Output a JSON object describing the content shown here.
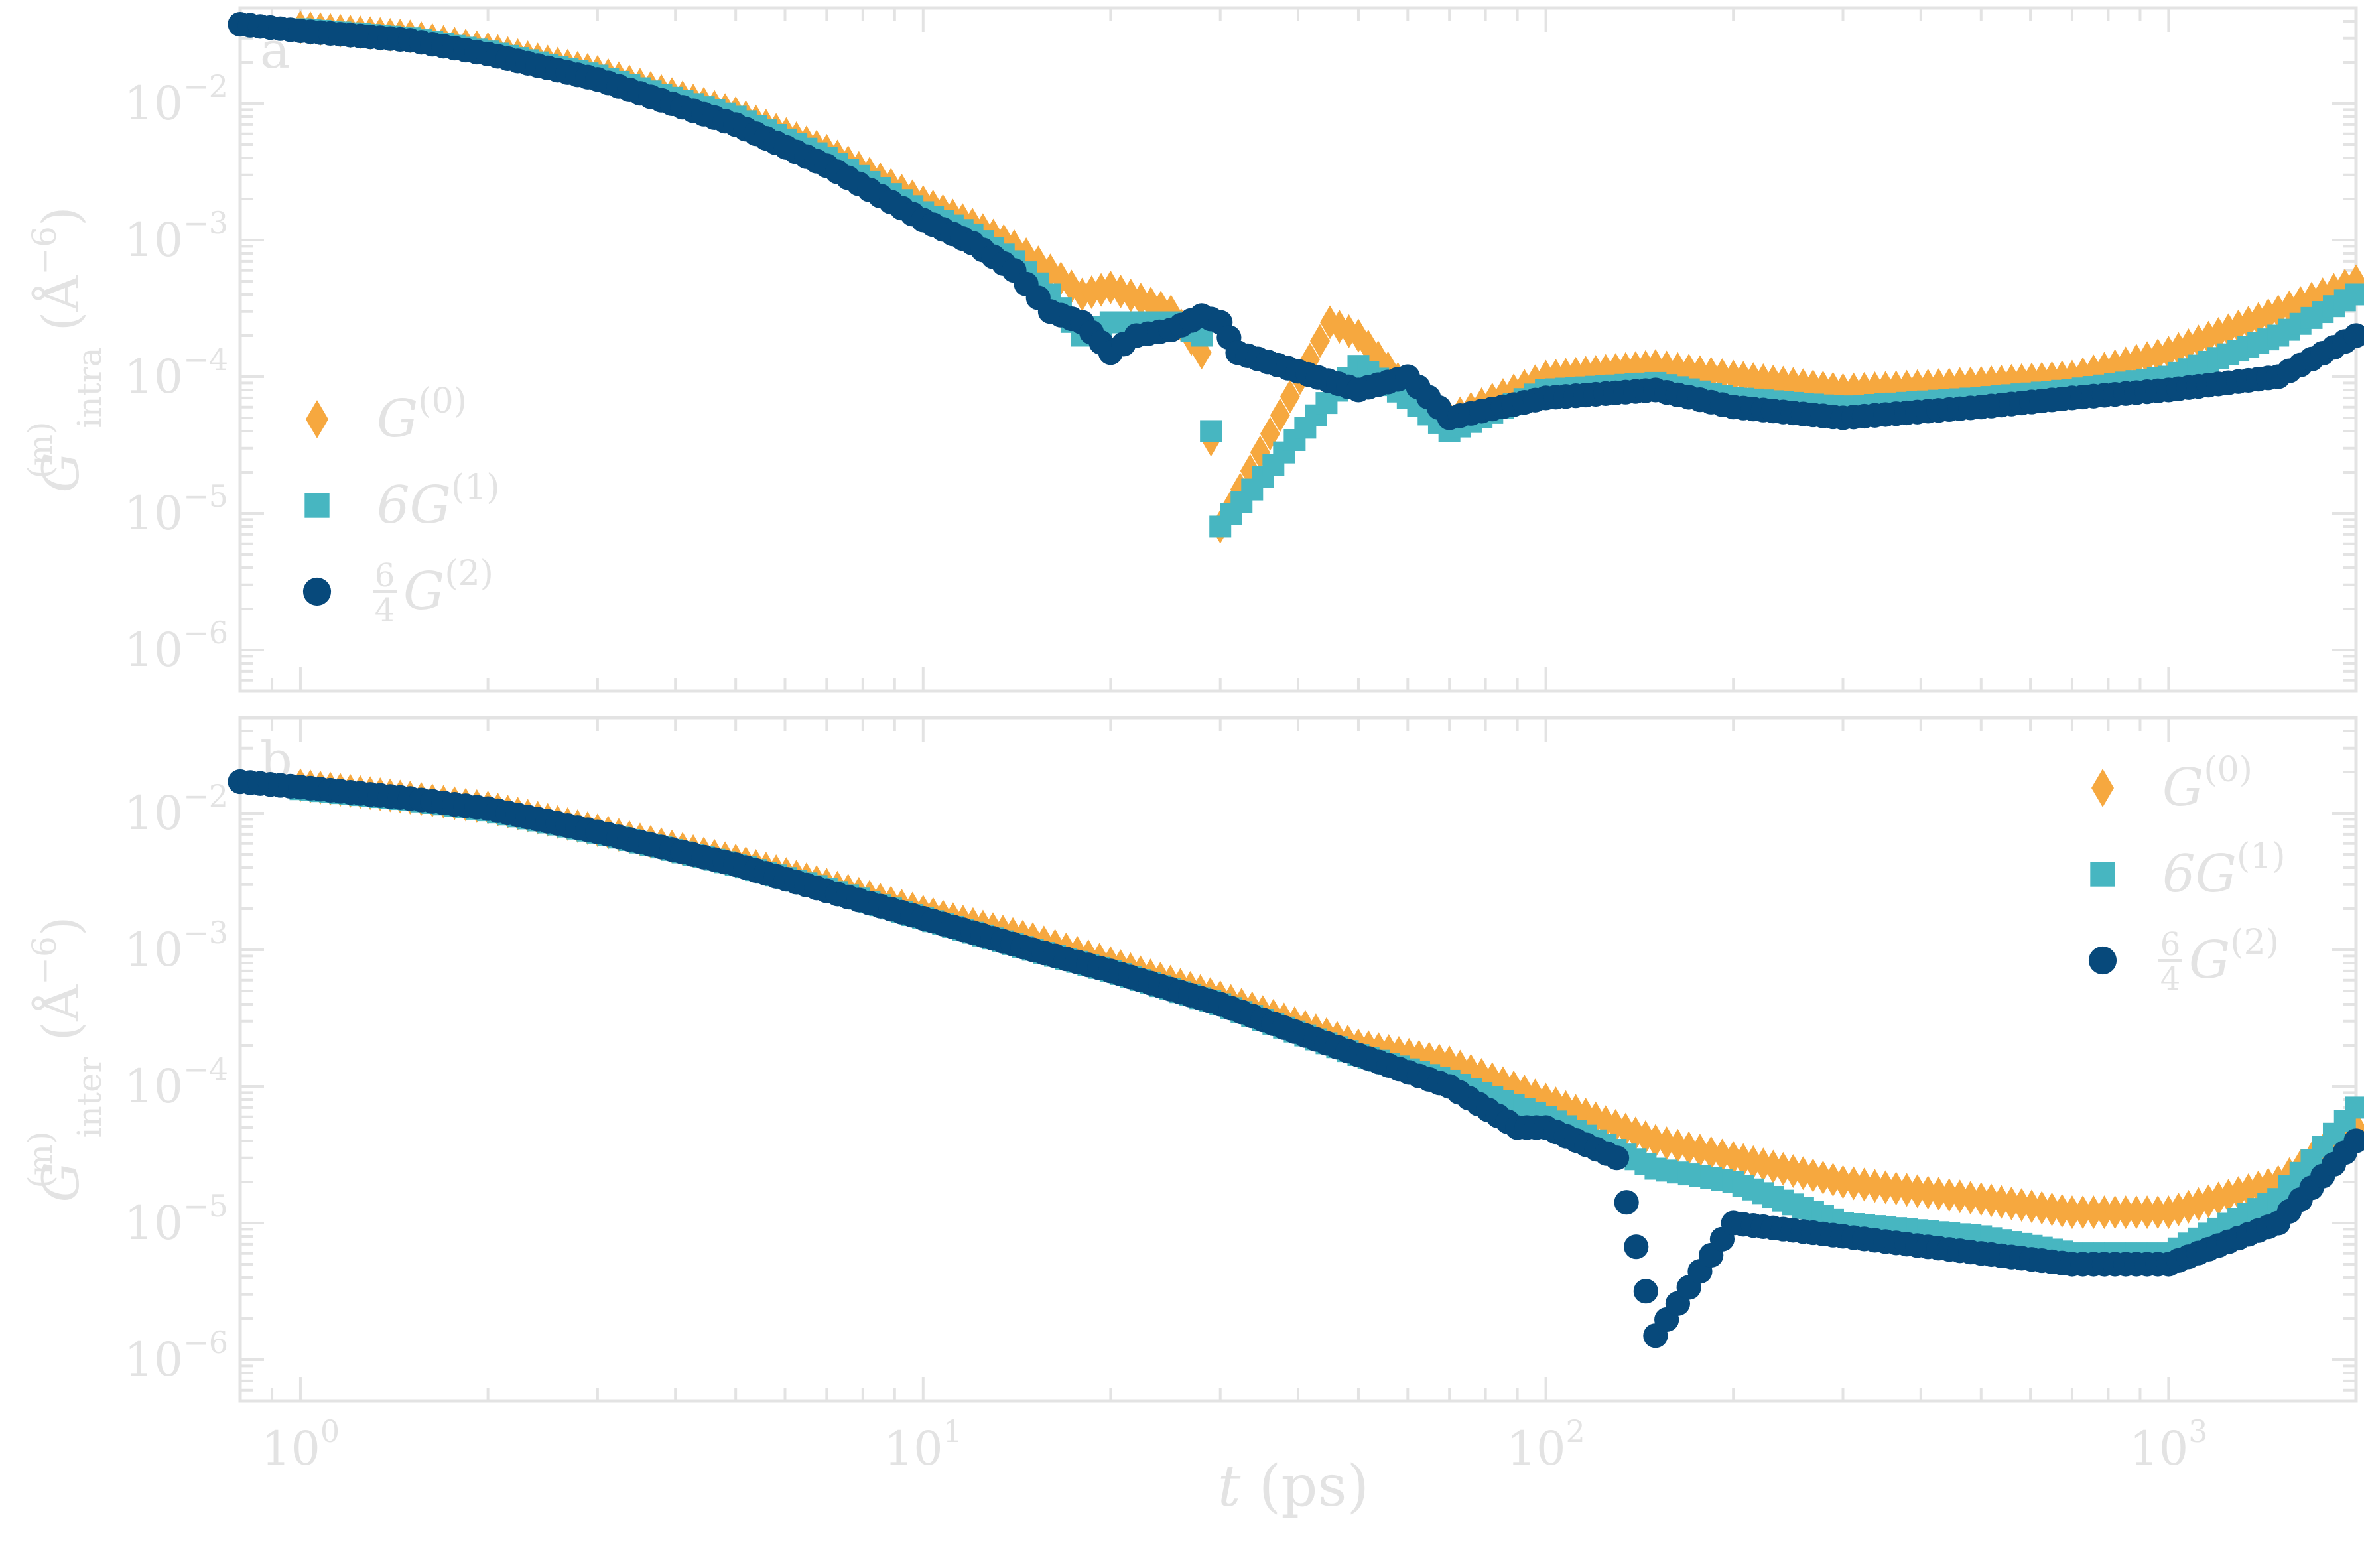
{
  "chart_data": [
    {
      "type": "scatter",
      "panel_label": "a",
      "ylabel": {
        "main": "G",
        "sup": "(m)",
        "sub": "intra",
        "unit": "(Å",
        "unit_sup": "−6",
        "close": ")"
      },
      "xlabel": {
        "var": "t",
        "unit": "(ps)"
      },
      "x_scale": "log",
      "y_scale": "log",
      "xlim": [
        0.8,
        2000
      ],
      "ylim": [
        5e-07,
        0.05
      ],
      "x_ticks": [
        {
          "base": "10",
          "exp": "0"
        },
        {
          "base": "10",
          "exp": "1"
        },
        {
          "base": "10",
          "exp": "2"
        },
        {
          "base": "10",
          "exp": "3"
        }
      ],
      "y_ticks": [
        {
          "base": "10",
          "exp": "−2"
        },
        {
          "base": "10",
          "exp": "−3"
        },
        {
          "base": "10",
          "exp": "−4"
        },
        {
          "base": "10",
          "exp": "−5"
        },
        {
          "base": "10",
          "exp": "−6"
        }
      ],
      "legend_position": "center-left",
      "series": [
        {
          "legend": {
            "main": "G",
            "sup": "(0)"
          },
          "marker": "diamond",
          "color": "#f6a83f",
          "x": [
            1.0,
            1.5,
            2.0,
            3.0,
            5.0,
            7.0,
            10.0,
            12.0,
            14.0,
            16.0,
            18.0,
            20.0,
            25.0,
            28.0,
            30.0,
            45.0,
            50.0,
            60.0,
            70.0,
            100.0,
            150.0,
            200.0,
            300.0,
            500.0,
            700.0,
            1000.0,
            1500.0,
            2000.0
          ],
          "y": [
            0.036,
            0.031,
            0.025,
            0.017,
            0.0085,
            0.0045,
            0.0019,
            0.0013,
            0.0009,
            0.0006,
            0.0004,
            0.00045,
            0.0003,
            0.00015,
            8e-06,
            0.00025,
            0.0002,
            8e-05,
            5e-05,
            0.0001,
            0.00012,
            0.0001,
            8e-05,
            9e-05,
            0.0001,
            0.00015,
            0.0003,
            0.0005
          ]
        },
        {
          "legend": {
            "main": "6G",
            "sup": "(1)"
          },
          "marker": "square",
          "color": "#47b6c1",
          "x": [
            1.0,
            1.5,
            2.0,
            3.0,
            5.0,
            7.0,
            10.0,
            12.0,
            14.0,
            16.0,
            18.0,
            20.0,
            25.0,
            28.0,
            30.0,
            50.0,
            60.0,
            70.0,
            100.0,
            150.0,
            200.0,
            300.0,
            500.0,
            700.0,
            1000.0,
            1500.0,
            2000.0
          ],
          "y": [
            0.035,
            0.03,
            0.024,
            0.016,
            0.008,
            0.004,
            0.0016,
            0.0011,
            0.0007,
            0.0004,
            0.0002,
            0.00025,
            0.00025,
            0.0002,
            8e-06,
            0.00012,
            7e-05,
            4e-05,
            8e-05,
            9e-05,
            7e-05,
            6e-05,
            7e-05,
            8e-05,
            0.0001,
            0.0002,
            0.0004
          ]
        },
        {
          "legend": {
            "frac_num": "6",
            "frac_den": "4",
            "main": "G",
            "sup": "(2)"
          },
          "marker": "circle",
          "color": "#07497b",
          "x": [
            0.8,
            1.0,
            1.5,
            2.0,
            3.0,
            5.0,
            7.0,
            10.0,
            12.0,
            14.0,
            16.0,
            18.0,
            20.0,
            22.0,
            25.0,
            28.0,
            30.0,
            32.0,
            50.0,
            60.0,
            70.0,
            100.0,
            150.0,
            200.0,
            300.0,
            500.0,
            700.0,
            1000.0,
            1500.0,
            2000.0
          ],
          "y": [
            0.038,
            0.034,
            0.029,
            0.023,
            0.015,
            0.007,
            0.0035,
            0.0014,
            0.00095,
            0.0006,
            0.0003,
            0.00025,
            0.00015,
            0.0002,
            0.00022,
            0.00028,
            0.00025,
            0.00015,
            8e-05,
            0.0001,
            5e-05,
            7e-05,
            8e-05,
            6e-05,
            5e-05,
            6e-05,
            7e-05,
            8e-05,
            0.0001,
            0.0002
          ]
        }
      ]
    },
    {
      "type": "scatter",
      "panel_label": "b",
      "ylabel": {
        "main": "G",
        "sup": "(m)",
        "sub": "inter",
        "unit": "(Å",
        "unit_sup": "−6",
        "close": ")"
      },
      "xlabel": {
        "var": "t",
        "unit": "(ps)"
      },
      "x_scale": "log",
      "y_scale": "log",
      "xlim": [
        0.8,
        2000
      ],
      "ylim": [
        5e-07,
        0.05
      ],
      "x_ticks": [
        {
          "base": "10",
          "exp": "0"
        },
        {
          "base": "10",
          "exp": "1"
        },
        {
          "base": "10",
          "exp": "2"
        },
        {
          "base": "10",
          "exp": "3"
        }
      ],
      "y_ticks": [
        {
          "base": "10",
          "exp": "−2"
        },
        {
          "base": "10",
          "exp": "−3"
        },
        {
          "base": "10",
          "exp": "−4"
        },
        {
          "base": "10",
          "exp": "−5"
        },
        {
          "base": "10",
          "exp": "−6"
        }
      ],
      "legend_position": "top-right",
      "series": [
        {
          "legend": {
            "main": "G",
            "sup": "(0)"
          },
          "marker": "diamond",
          "color": "#f6a83f",
          "x": [
            1.0,
            1.5,
            2.0,
            3.0,
            5.0,
            7.0,
            10.0,
            15.0,
            20.0,
            30.0,
            50.0,
            70.0,
            100.0,
            150.0,
            200.0,
            300.0,
            500.0,
            700.0,
            1000.0,
            1500.0,
            2000.0
          ],
          "y": [
            0.016,
            0.013,
            0.011,
            0.0075,
            0.0045,
            0.003,
            0.0019,
            0.0012,
            0.0008,
            0.00045,
            0.0002,
            0.00015,
            8e-05,
            4e-05,
            3e-05,
            2e-05,
            1.5e-05,
            1.2e-05,
            1.2e-05,
            2e-05,
            5e-05
          ]
        },
        {
          "legend": {
            "main": "6G",
            "sup": "(1)"
          },
          "marker": "square",
          "color": "#47b6c1",
          "x": [
            1.0,
            1.5,
            2.0,
            3.0,
            5.0,
            7.0,
            10.0,
            15.0,
            20.0,
            30.0,
            50.0,
            70.0,
            100.0,
            150.0,
            200.0,
            300.0,
            500.0,
            700.0,
            1000.0,
            1500.0,
            2000.0
          ],
          "y": [
            0.015,
            0.0125,
            0.0105,
            0.0072,
            0.0042,
            0.0028,
            0.0017,
            0.001,
            0.0007,
            0.0004,
            0.00017,
            0.00011,
            6e-05,
            2.5e-05,
            2e-05,
            1e-05,
            8e-06,
            6e-06,
            6e-06,
            1.5e-05,
            7e-05
          ]
        },
        {
          "legend": {
            "frac_num": "6",
            "frac_den": "4",
            "main": "G",
            "sup": "(2)"
          },
          "marker": "circle",
          "color": "#07497b",
          "x": [
            0.8,
            1.0,
            1.5,
            2.0,
            3.0,
            5.0,
            7.0,
            10.0,
            15.0,
            20.0,
            30.0,
            50.0,
            70.0,
            90.0,
            100.0,
            130.0,
            150.0,
            200.0,
            300.0,
            500.0,
            700.0,
            1000.0,
            1500.0,
            2000.0
          ],
          "y": [
            0.017,
            0.0155,
            0.0128,
            0.0108,
            0.0073,
            0.0042,
            0.0027,
            0.0017,
            0.001,
            0.0007,
            0.0004,
            0.00017,
            0.0001,
            5e-05,
            5e-05,
            3e-05,
            1.5e-06,
            1e-05,
            8e-06,
            6e-06,
            5e-06,
            5e-06,
            1e-05,
            4e-05
          ]
        }
      ]
    }
  ]
}
